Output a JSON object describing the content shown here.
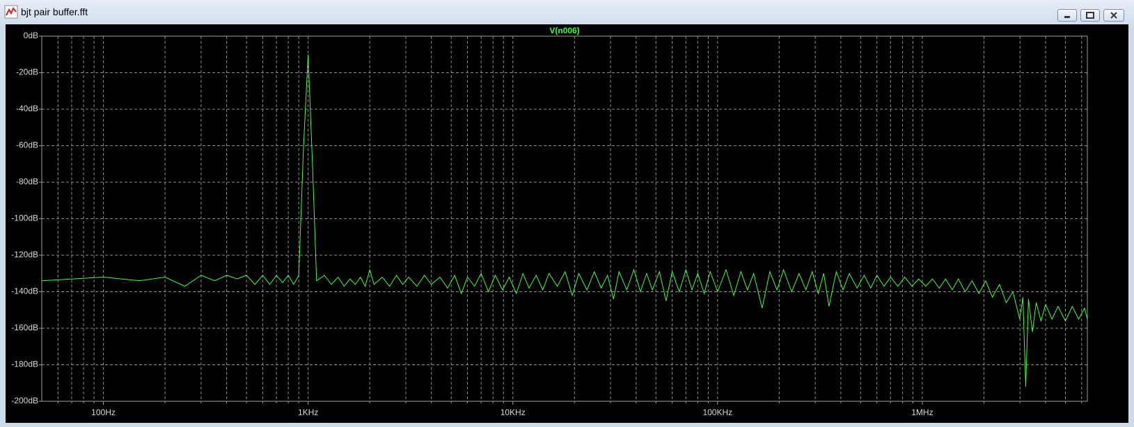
{
  "window": {
    "title": "bjt pair buffer.fft"
  },
  "chart_data": {
    "type": "line",
    "x_scale": "log",
    "grid": true,
    "xlim": [
      50,
      6400000
    ],
    "ylim": [
      -200,
      0
    ],
    "xticks": [
      {
        "value": 100,
        "label": "100Hz"
      },
      {
        "value": 1000,
        "label": "1KHz"
      },
      {
        "value": 10000,
        "label": "10KHz"
      },
      {
        "value": 100000,
        "label": "100KHz"
      },
      {
        "value": 1000000,
        "label": "1MHz"
      }
    ],
    "xminorticks": [
      60,
      70,
      80,
      90,
      200,
      300,
      400,
      500,
      600,
      700,
      800,
      900,
      2000,
      3000,
      4000,
      5000,
      6000,
      7000,
      8000,
      9000,
      20000,
      30000,
      40000,
      50000,
      60000,
      70000,
      80000,
      90000,
      200000,
      300000,
      400000,
      500000,
      600000,
      700000,
      800000,
      900000,
      2000000,
      3000000,
      4000000,
      5000000,
      6000000
    ],
    "yticks": [
      {
        "value": 0,
        "label": "0dB"
      },
      {
        "value": -20,
        "label": "-20dB"
      },
      {
        "value": -40,
        "label": "-40dB"
      },
      {
        "value": -60,
        "label": "-60dB"
      },
      {
        "value": -80,
        "label": "-80dB"
      },
      {
        "value": -100,
        "label": "-100dB"
      },
      {
        "value": -120,
        "label": "-120dB"
      },
      {
        "value": -140,
        "label": "-140dB"
      },
      {
        "value": -160,
        "label": "-160dB"
      },
      {
        "value": -180,
        "label": "-180dB"
      },
      {
        "value": -200,
        "label": "-200dB"
      }
    ],
    "x": [
      50,
      100,
      150,
      200,
      250,
      300,
      350,
      400,
      450,
      500,
      550,
      600,
      650,
      700,
      750,
      800,
      850,
      900,
      950,
      1000,
      1050,
      1100,
      1200,
      1300,
      1400,
      1500,
      1600,
      1700,
      1800,
      1900,
      2000,
      2100,
      2300,
      2500,
      2700,
      2900,
      3100,
      3400,
      3700,
      4000,
      4400,
      4800,
      5200,
      5600,
      6000,
      6500,
      7000,
      7600,
      8200,
      8900,
      9600,
      10400,
      11200,
      12000,
      13000,
      14000,
      15000,
      16500,
      18000,
      19500,
      21000,
      23000,
      25000,
      27000,
      29000,
      31000,
      33000,
      36000,
      39000,
      42000,
      45000,
      48000,
      52000,
      56000,
      60000,
      65000,
      70000,
      75000,
      80000,
      86000,
      92000,
      100000,
      110000,
      120000,
      130000,
      140000,
      150000,
      165000,
      180000,
      195000,
      210000,
      230000,
      250000,
      270000,
      290000,
      310000,
      330000,
      350000,
      380000,
      410000,
      440000,
      480000,
      520000,
      560000,
      600000,
      650000,
      700000,
      760000,
      820000,
      890000,
      960000,
      1040000,
      1120000,
      1210000,
      1300000,
      1400000,
      1500000,
      1620000,
      1750000,
      1890000,
      2040000,
      2200000,
      2380000,
      2570000,
      2770000,
      2990000,
      3100000,
      3200000,
      3300000,
      3450000,
      3600000,
      3800000,
      4000000,
      4300000,
      4600000,
      5000000,
      5400000,
      5800000,
      6200000,
      6400000
    ],
    "series": [
      {
        "name": "V(n006)",
        "color": "#3cff3c",
        "values": [
          -134,
          -132,
          -134,
          -132,
          -137,
          -131,
          -134,
          -131,
          -133,
          -131,
          -136,
          -131,
          -136,
          -131,
          -135,
          -131,
          -136,
          -131,
          -60,
          -10,
          -70,
          -134,
          -131,
          -136,
          -132,
          -137,
          -133,
          -136,
          -132,
          -137,
          -128,
          -136,
          -132,
          -137,
          -131,
          -136,
          -132,
          -137,
          -131,
          -136,
          -132,
          -138,
          -131,
          -141,
          -132,
          -137,
          -130,
          -140,
          -131,
          -139,
          -132,
          -141,
          -130,
          -138,
          -131,
          -139,
          -130,
          -137,
          -129,
          -142,
          -130,
          -139,
          -129,
          -138,
          -131,
          -144,
          -129,
          -139,
          -128,
          -140,
          -130,
          -139,
          -129,
          -145,
          -129,
          -140,
          -128,
          -139,
          -130,
          -141,
          -129,
          -140,
          -128,
          -142,
          -129,
          -139,
          -130,
          -149,
          -129,
          -139,
          -128,
          -140,
          -130,
          -139,
          -129,
          -141,
          -130,
          -148,
          -129,
          -139,
          -130,
          -138,
          -131,
          -138,
          -131,
          -137,
          -132,
          -137,
          -132,
          -137,
          -133,
          -137,
          -133,
          -138,
          -133,
          -139,
          -133,
          -140,
          -134,
          -141,
          -134,
          -143,
          -136,
          -146,
          -140,
          -155,
          -143,
          -192,
          -144,
          -162,
          -146,
          -156,
          -147,
          -155,
          -148,
          -156,
          -148,
          -155,
          -149,
          -155
        ]
      }
    ]
  }
}
